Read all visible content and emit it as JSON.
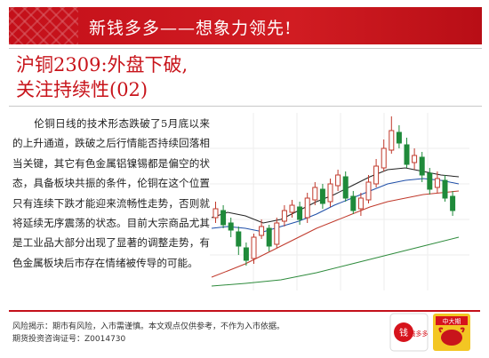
{
  "header": {
    "slogan": "新钱多多——想象力领先!",
    "bg_color": "#c4101a"
  },
  "article": {
    "title_line1": "沪铜2309:外盘下破,",
    "title_line2": "关注持续性(02)",
    "paragraph_lines": [
      "伦铜日线的技术形态跌破了5月",
      "底以来的上升通道，跌破之后行情",
      "能否持续回落相当关键，其它有色",
      "金属铝镍锡都是偏空的状态，具备",
      "板块共振的条件，伦铜在这个位置",
      "只有连续下跌才能迎来流畅性走势，",
      "否则就将延续无序震荡的状态。目",
      "前大宗商品尤其是工业品大部分出",
      "现了显著的调整走势，有色金属板",
      "块后市存在情绪被传导的可能。"
    ]
  },
  "footer": {
    "risk_notice": "风险揭示：期市有风险，入市需谨慎。本文观点仅供参考，不作为入市依据。",
    "license": "期货投资咨询证号：Z0014730"
  },
  "logos": {
    "logo1_icon": "xinqianduoduo-logo-icon",
    "logo1_text": "钱多多",
    "logo2_icon": "niu-logo-icon",
    "logo2_text": "中大期"
  }
}
